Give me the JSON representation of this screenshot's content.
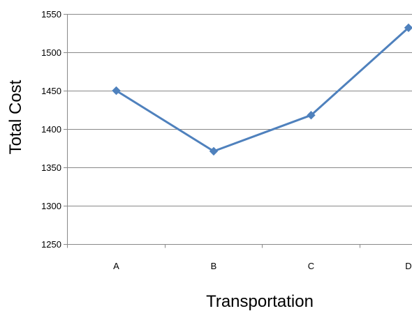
{
  "chart_data": {
    "type": "line",
    "title": "",
    "xlabel": "Transportation",
    "ylabel": "Total Cost",
    "categories": [
      "A",
      "B",
      "C",
      "D"
    ],
    "values": [
      1450,
      1371,
      1418,
      1532
    ],
    "ylim": [
      1250,
      1550
    ],
    "yticks": [
      1250,
      1300,
      1350,
      1400,
      1450,
      1500,
      1550
    ],
    "grid": true,
    "legend": "none",
    "marker": "diamond",
    "line_color": "#4f81bd",
    "grid_color": "#888888"
  }
}
